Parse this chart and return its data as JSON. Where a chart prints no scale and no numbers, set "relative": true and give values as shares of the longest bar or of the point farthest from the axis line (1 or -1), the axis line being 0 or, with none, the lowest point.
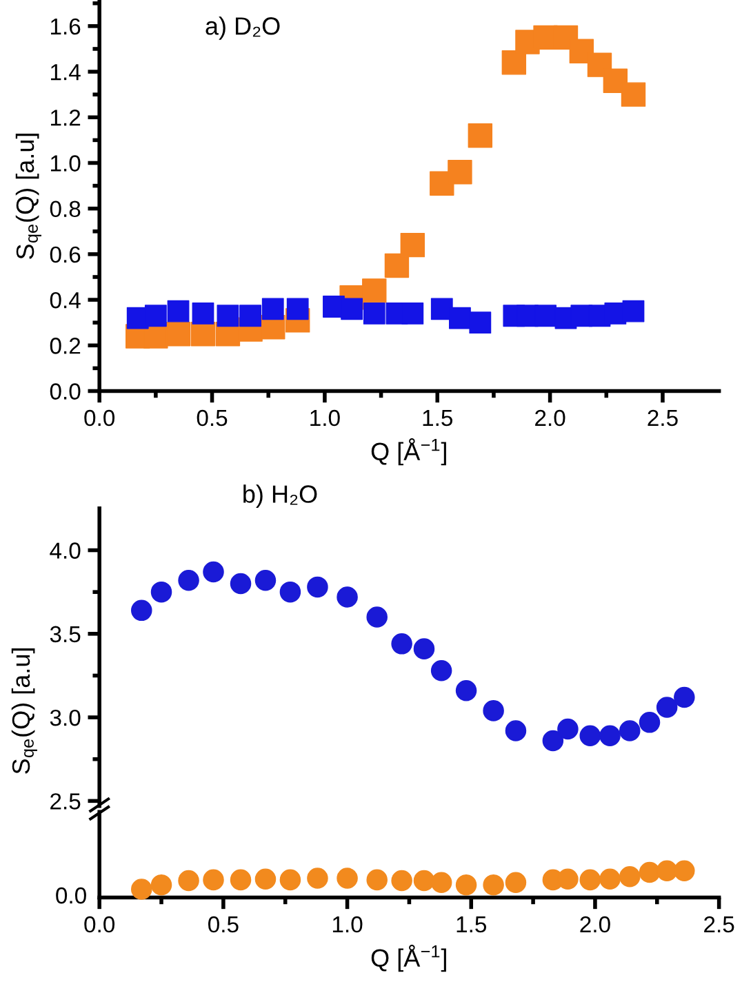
{
  "chart_data": [
    {
      "type": "scatter",
      "xlabel": "Q [Å$^{−1}$]",
      "ylabel": "S$_{qe}$(Q) [a.u]",
      "annotations": [
        "a) D₂O"
      ],
      "marker": "square",
      "xlim": [
        0,
        2.75
      ],
      "ylim": [
        0,
        1.71
      ],
      "xticks": [
        {
          "value": 0,
          "label": "0.0"
        },
        {
          "value": 0.5,
          "label": "0.5"
        },
        {
          "value": 1,
          "label": "1.0"
        },
        {
          "value": 1.5,
          "label": "1.5"
        },
        {
          "value": 2,
          "label": "2.0"
        },
        {
          "value": 2.5,
          "label": "2.5"
        }
      ],
      "yticks": [
        {
          "value": 0,
          "label": "0.0"
        },
        {
          "value": 0.2,
          "label": "0.2"
        },
        {
          "value": 0.4,
          "label": "0.4"
        },
        {
          "value": 0.6,
          "label": "0.6"
        },
        {
          "value": 0.8,
          "label": "0.8"
        },
        {
          "value": 1.0,
          "label": "1.0"
        },
        {
          "value": 1.2,
          "label": "1.2"
        },
        {
          "value": 1.4,
          "label": "1.4"
        },
        {
          "value": 1.6,
          "label": "1.6"
        }
      ],
      "series": [
        {
          "color": "#f5821f",
          "x": [
            0.17,
            0.25,
            0.35,
            0.46,
            0.57,
            0.67,
            0.77,
            0.88,
            1.05,
            1.12,
            1.22,
            1.32,
            1.39,
            1.52,
            1.6,
            1.69,
            1.84,
            1.9,
            1.98,
            2.07,
            2.14,
            2.22,
            2.29,
            2.37
          ],
          "values": [
            0.24,
            0.24,
            0.25,
            0.25,
            0.25,
            0.27,
            0.28,
            0.31,
            null,
            0.41,
            0.44,
            0.55,
            0.64,
            0.91,
            0.96,
            1.12,
            1.44,
            1.53,
            1.55,
            1.55,
            1.49,
            1.43,
            1.36,
            1.3
          ]
        },
        {
          "color": "#1414e6",
          "x": [
            0.17,
            0.25,
            0.35,
            0.46,
            0.57,
            0.67,
            0.77,
            0.88,
            1.04,
            1.12,
            1.22,
            1.32,
            1.39,
            1.52,
            1.6,
            1.69,
            1.84,
            1.9,
            1.98,
            2.07,
            2.14,
            2.22,
            2.29,
            2.37
          ],
          "values": [
            0.32,
            0.33,
            0.35,
            0.34,
            0.33,
            0.33,
            0.36,
            0.36,
            0.37,
            0.36,
            0.34,
            0.34,
            0.34,
            0.36,
            0.32,
            0.3,
            0.33,
            0.33,
            0.33,
            0.32,
            0.33,
            0.33,
            0.34,
            0.35
          ]
        }
      ]
    },
    {
      "type": "scatter",
      "ylabel": "S$_{qe}$(Q) [a.u]",
      "annotations": [
        "b) H₂O"
      ],
      "marker": "circle",
      "tick_labels": "y",
      "xlim": [
        0,
        2.5
      ],
      "ylim": [
        2.47,
        4.25
      ],
      "yticks": [
        {
          "value": 2.5,
          "label": "2.5"
        },
        {
          "value": 3.0,
          "label": "3.0"
        },
        {
          "value": 3.5,
          "label": "3.5"
        },
        {
          "value": 4.0,
          "label": "4.0"
        }
      ],
      "series": [
        {
          "color": "#1a1ad6",
          "x": [
            0.17,
            0.25,
            0.36,
            0.46,
            0.57,
            0.67,
            0.77,
            0.88,
            1.0,
            1.12,
            1.22,
            1.31,
            1.38,
            1.48,
            1.59,
            1.68,
            1.83,
            1.89,
            1.98,
            2.06,
            2.14,
            2.22,
            2.29,
            2.36
          ],
          "values": [
            3.64,
            3.75,
            3.82,
            3.87,
            3.8,
            3.82,
            3.75,
            3.78,
            3.72,
            3.6,
            3.44,
            3.41,
            3.28,
            3.16,
            3.04,
            2.92,
            2.86,
            2.93,
            2.89,
            2.89,
            2.92,
            2.97,
            3.06,
            3.12
          ]
        }
      ]
    },
    {
      "type": "scatter",
      "xlabel": "Q [Å$^{−1}$]",
      "marker": "circle",
      "relative": true,
      "annotations": [
        "0.0"
      ],
      "xlim": [
        0,
        2.5
      ],
      "xticks": [
        {
          "value": 0,
          "label": "0.0"
        },
        {
          "value": 0.5,
          "label": "0.5"
        },
        {
          "value": 1,
          "label": "1.0"
        },
        {
          "value": 1.5,
          "label": "1.5"
        },
        {
          "value": 2,
          "label": "2.0"
        },
        {
          "value": 2.5,
          "label": "2.5"
        }
      ],
      "series": [
        {
          "color": "#f28a1e",
          "x": [
            0.17,
            0.25,
            0.36,
            0.46,
            0.57,
            0.67,
            0.77,
            0.88,
            1.0,
            1.12,
            1.22,
            1.31,
            1.38,
            1.48,
            1.59,
            1.68,
            1.83,
            1.89,
            1.98,
            2.06,
            2.14,
            2.22,
            2.29,
            2.36
          ],
          "values": [
            0.31,
            0.47,
            0.63,
            0.66,
            0.66,
            0.69,
            0.66,
            0.72,
            0.72,
            0.66,
            0.63,
            0.63,
            0.56,
            0.47,
            0.47,
            0.56,
            0.66,
            0.69,
            0.66,
            0.69,
            0.78,
            0.94,
            1.0,
            1.0
          ]
        }
      ]
    }
  ]
}
